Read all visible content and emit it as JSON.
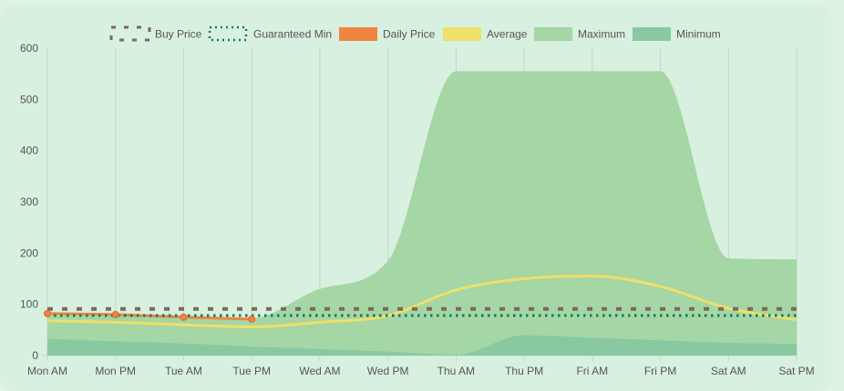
{
  "chart_data": {
    "type": "line",
    "categories": [
      "Mon AM",
      "Mon PM",
      "Tue AM",
      "Tue PM",
      "Wed AM",
      "Wed PM",
      "Thu AM",
      "Thu PM",
      "Fri AM",
      "Fri PM",
      "Sat AM",
      "Sat PM"
    ],
    "ylim": [
      0,
      600
    ],
    "yticks": [
      0,
      100,
      200,
      300,
      400,
      500,
      600
    ],
    "grid": "vertical",
    "legend_position": "top",
    "series": [
      {
        "name": "Buy Price",
        "kind": "line",
        "style": "dashed",
        "color": "#7a6a58",
        "values": [
          91,
          91,
          91,
          91,
          91,
          91,
          91,
          91,
          91,
          91,
          91,
          91
        ]
      },
      {
        "name": "Guaranteed Min",
        "kind": "line",
        "style": "dotted",
        "color": "#0f7a5a",
        "values": [
          78,
          78,
          78,
          78,
          78,
          78,
          78,
          78,
          78,
          78,
          78,
          78
        ]
      },
      {
        "name": "Daily Price",
        "kind": "line",
        "style": "solid",
        "color": "#ef8440",
        "values": [
          82,
          80,
          75,
          71,
          null,
          null,
          null,
          null,
          null,
          null,
          null,
          null
        ]
      },
      {
        "name": "Average",
        "kind": "line",
        "style": "solid",
        "color": "#efe06a",
        "values": [
          68,
          65,
          60,
          56,
          65,
          78,
          128,
          150,
          155,
          135,
          92,
          70
        ]
      },
      {
        "name": "Maximum",
        "kind": "area",
        "color": "#a5d6a5",
        "values": [
          84,
          80,
          78,
          73,
          130,
          185,
          555,
          555,
          555,
          555,
          190,
          188
        ]
      },
      {
        "name": "Minimum",
        "kind": "area",
        "color": "#88c9a2",
        "values": [
          33,
          28,
          24,
          18,
          13,
          8,
          2,
          40,
          35,
          30,
          25,
          23
        ]
      }
    ]
  }
}
